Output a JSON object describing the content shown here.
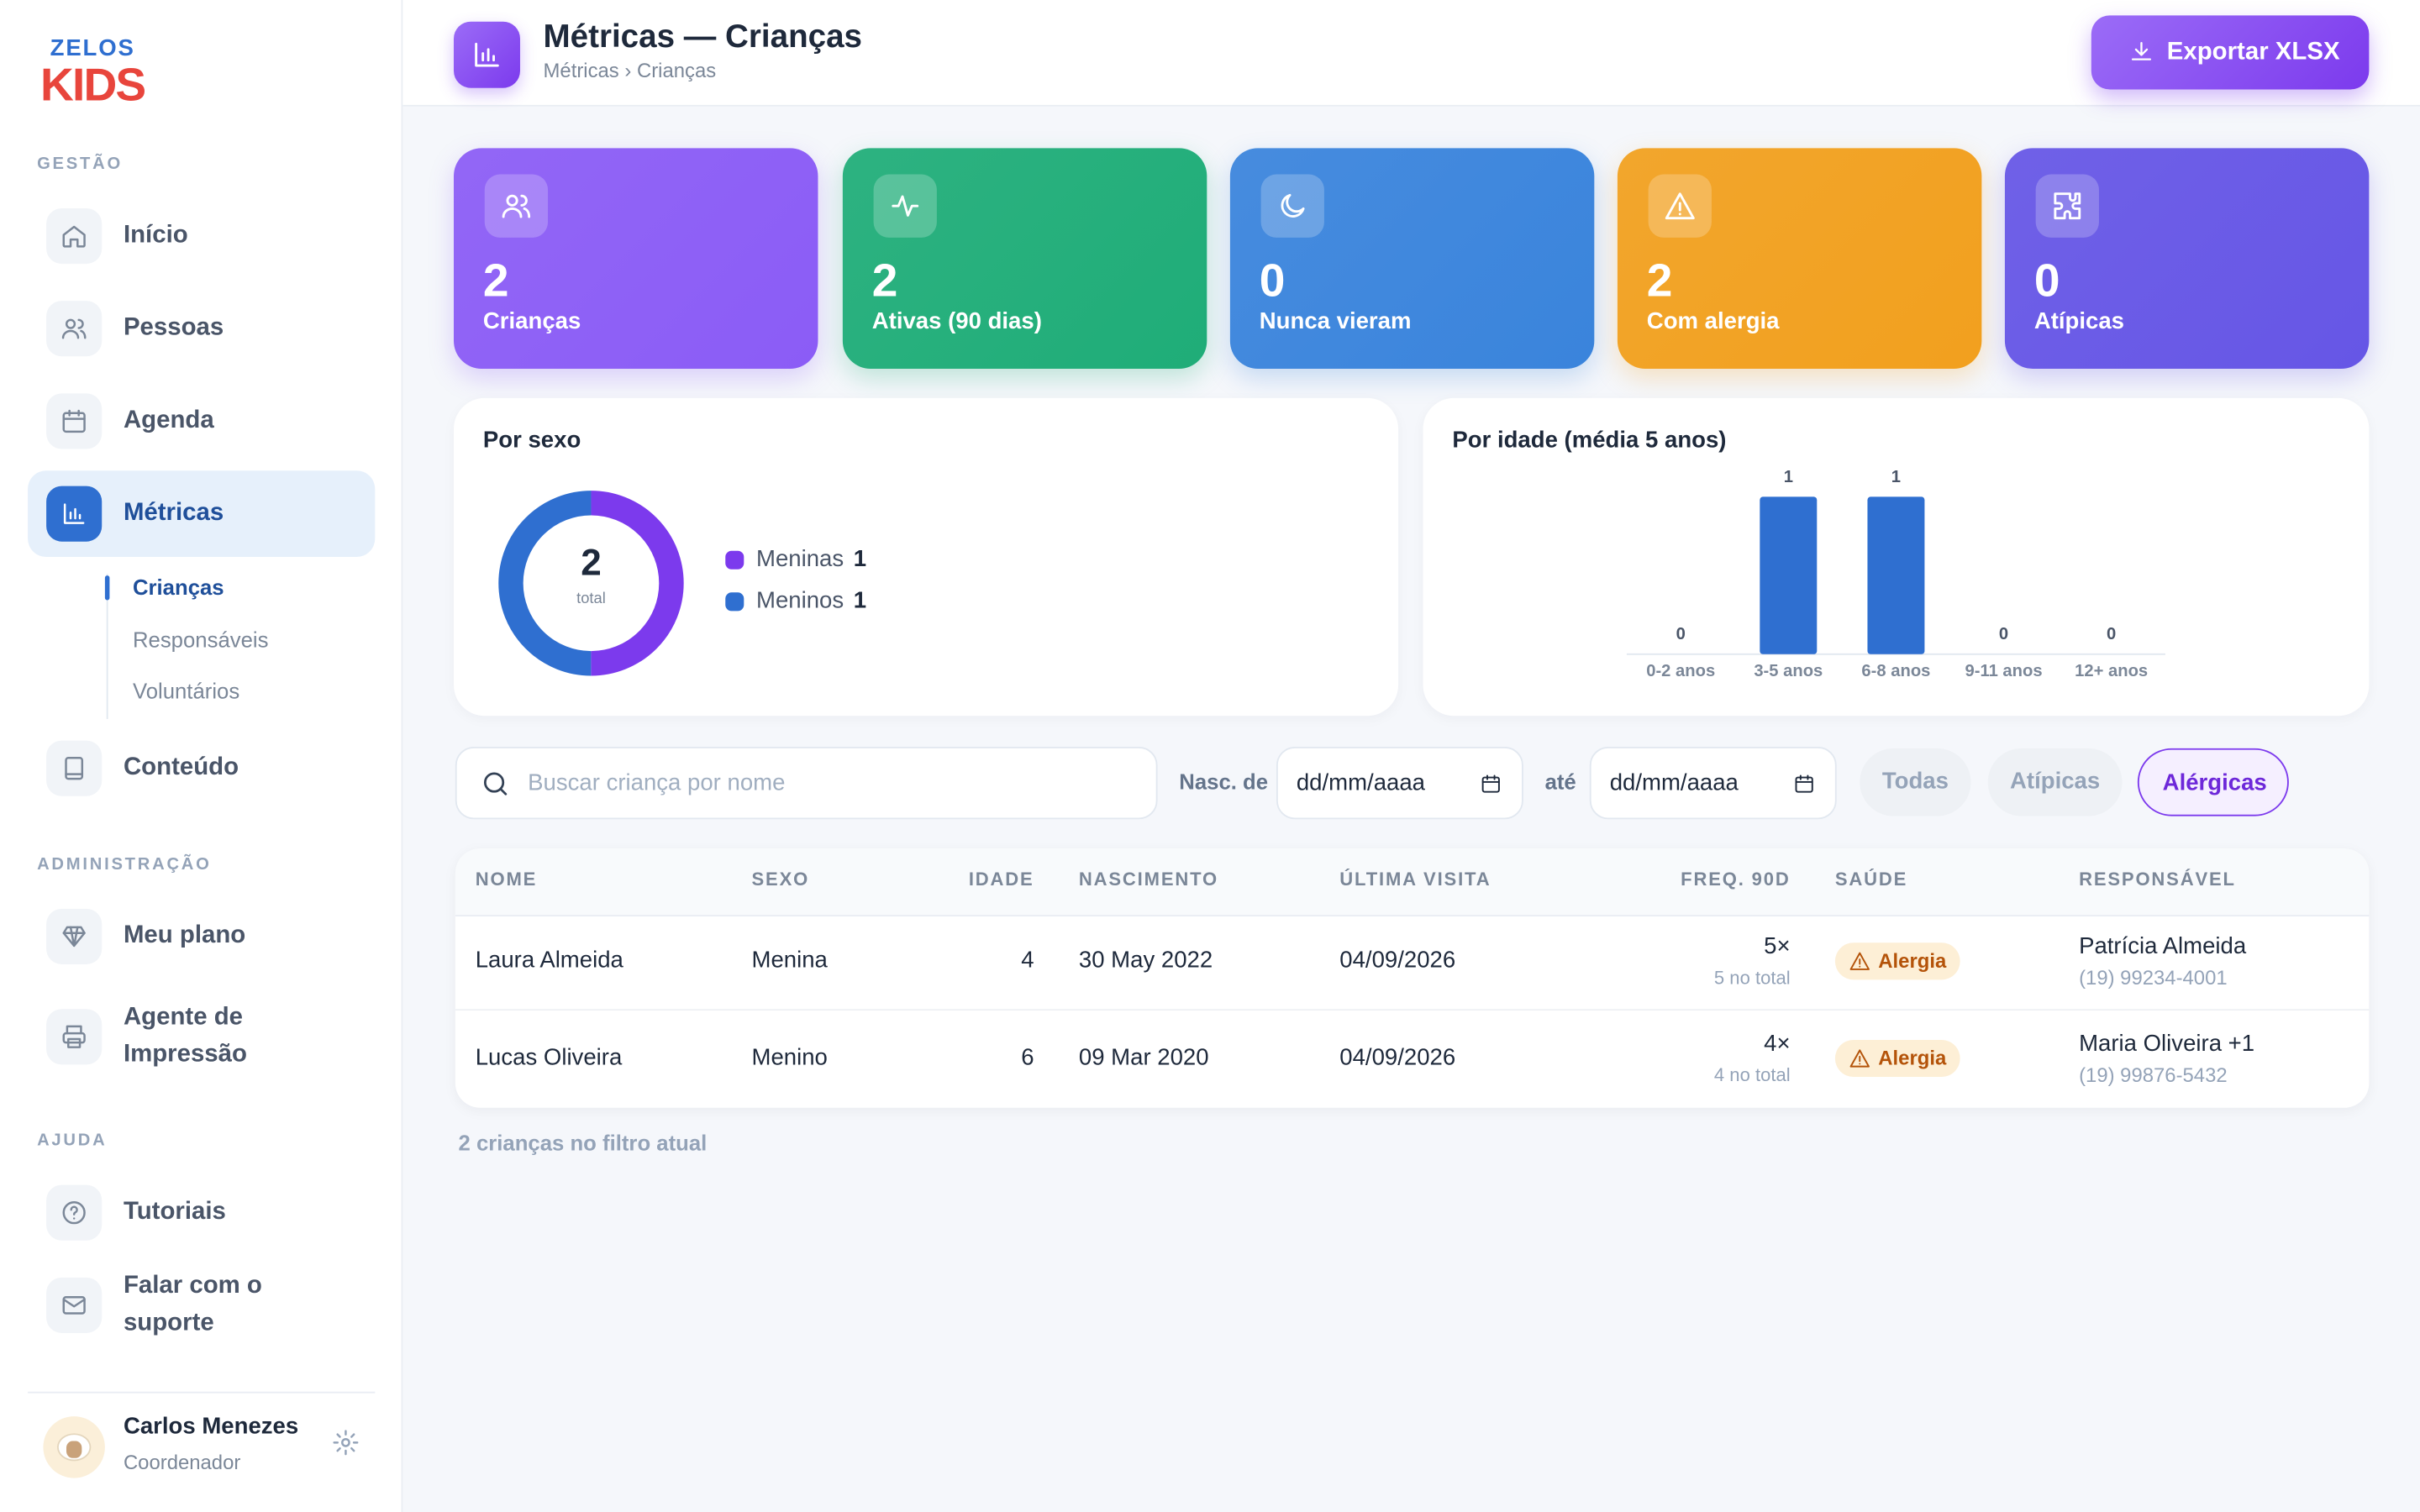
{
  "brand": {
    "top": "ZELOS",
    "bottom": "KIDS"
  },
  "sidebar": {
    "sections": [
      {
        "title": "GESTÃO",
        "items": [
          {
            "label": "Início"
          },
          {
            "label": "Pessoas"
          },
          {
            "label": "Agenda"
          },
          {
            "label": "Métricas",
            "active": true,
            "children": [
              "Crianças",
              "Responsáveis",
              "Voluntários"
            ],
            "active_child": 0
          },
          {
            "label": "Conteúdo"
          }
        ]
      },
      {
        "title": "ADMINISTRAÇÃO",
        "items": [
          {
            "label": "Meu plano"
          },
          {
            "label": "Agente de Impressão"
          }
        ]
      },
      {
        "title": "AJUDA",
        "items": [
          {
            "label": "Tutoriais"
          },
          {
            "label": "Falar com o suporte"
          }
        ]
      }
    ]
  },
  "user": {
    "name": "Carlos Menezes",
    "role": "Coordenador"
  },
  "header": {
    "title": "Métricas — Crianças",
    "breadcrumb": "Métricas › Crianças",
    "export_button": "Exportar XLSX"
  },
  "stats": [
    {
      "value": 2,
      "label": "Crianças",
      "color": "#8b5cf6"
    },
    {
      "value": 2,
      "label": "Ativas (90 dias)",
      "color": "#1fad78"
    },
    {
      "value": 0,
      "label": "Nunca vieram",
      "color": "#3a84dc"
    },
    {
      "value": 2,
      "label": "Com alergia",
      "color": "#f2a01e"
    },
    {
      "value": 0,
      "label": "Atípicas",
      "color": "#6656e6"
    }
  ],
  "sex_chart": {
    "type": "donut",
    "title": "Por sexo",
    "total": 2,
    "total_label": "total",
    "series": [
      {
        "name": "Meninas",
        "value": 1,
        "color": "#7c3aed"
      },
      {
        "name": "Meninos",
        "value": 1,
        "color": "#2f6fd0"
      }
    ]
  },
  "age_chart": {
    "type": "bar",
    "title": "Por idade (média 5 anos)",
    "color": "#2f6fd0",
    "categories": [
      "0-2 anos",
      "3-5 anos",
      "6-8 anos",
      "9-11 anos",
      "12+ anos"
    ],
    "values": [
      0,
      1,
      1,
      0,
      0
    ]
  },
  "filters": {
    "search_placeholder": "Buscar criança por nome",
    "date_from_label": "Nasc. de",
    "date_placeholder": "dd/mm/aaaa",
    "date_to_label": "até",
    "chips": [
      "Todas",
      "Atípicas",
      "Alérgicas"
    ],
    "active_chip": 2
  },
  "table": {
    "columns": [
      "NOME",
      "SEXO",
      "IDADE",
      "NASCIMENTO",
      "ÚLTIMA VISITA",
      "FREQ. 90D",
      "SAÚDE",
      "RESPONSÁVEL"
    ],
    "rows": [
      {
        "name": "Laura Almeida",
        "sex": "Menina",
        "age": 4,
        "birth": "30 May 2022",
        "last_visit": "04/09/2026",
        "freq": "5×",
        "freq_total": "5 no total",
        "health": "Alergia",
        "guardian": "Patrícia Almeida",
        "phone": "(19) 99234-4001"
      },
      {
        "name": "Lucas Oliveira",
        "sex": "Menino",
        "age": 6,
        "birth": "09 Mar 2020",
        "last_visit": "04/09/2026",
        "freq": "4×",
        "freq_total": "4 no total",
        "health": "Alergia",
        "guardian": "Maria Oliveira +1",
        "phone": "(19) 99876-5432"
      }
    ]
  },
  "footer_note": "2 crianças no filtro atual"
}
